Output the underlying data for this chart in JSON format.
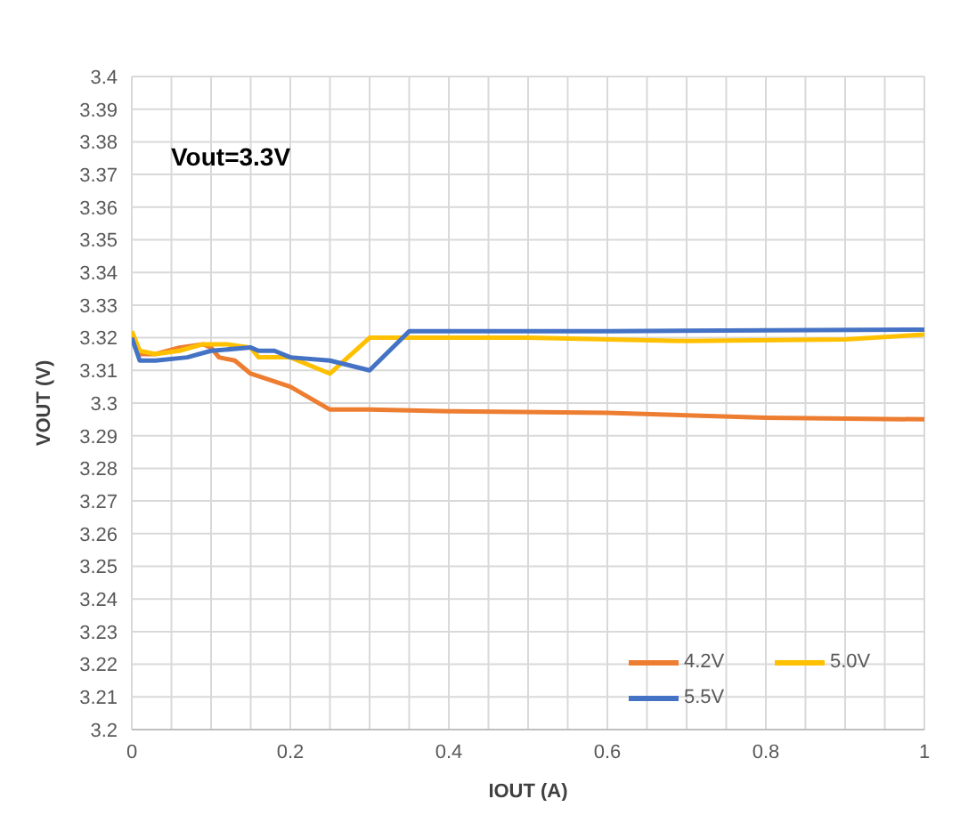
{
  "chart_data": {
    "type": "line",
    "xlabel": "IOUT (A)",
    "ylabel": "VOUT (V)",
    "annotations": [
      "Vout=3.3V"
    ],
    "xlim": [
      0,
      1
    ],
    "xticks": [
      0,
      {
        "value": 0.05,
        "label": null
      },
      {
        "value": 0.1,
        "label": null
      },
      {
        "value": 0.15,
        "label": null
      },
      0.2,
      {
        "value": 0.25,
        "label": null
      },
      {
        "value": 0.3,
        "label": null
      },
      {
        "value": 0.35,
        "label": null
      },
      0.4,
      {
        "value": 0.45,
        "label": null
      },
      {
        "value": 0.5,
        "label": null
      },
      {
        "value": 0.55,
        "label": null
      },
      0.6,
      {
        "value": 0.65,
        "label": null
      },
      {
        "value": 0.7,
        "label": null
      },
      {
        "value": 0.75,
        "label": null
      },
      0.8,
      {
        "value": 0.85,
        "label": null
      },
      {
        "value": 0.9,
        "label": null
      },
      {
        "value": 0.95,
        "label": null
      },
      1
    ],
    "ylim": [
      3.2,
      3.4
    ],
    "yticks": [
      3.2,
      3.21,
      3.22,
      3.23,
      3.24,
      3.25,
      3.26,
      3.27,
      3.28,
      3.29,
      3.3,
      3.31,
      3.32,
      3.33,
      3.34,
      3.35,
      3.36,
      3.37,
      3.38,
      3.39,
      3.4
    ],
    "grid": true,
    "legend": "bottom right",
    "marker": "none",
    "line_style": "solid",
    "series": [
      {
        "name": "4.2V",
        "color": "#ed7d31",
        "x": [
          0,
          0.01,
          0.03,
          0.06,
          0.09,
          0.1,
          0.11,
          0.13,
          0.15,
          0.2,
          0.25,
          0.3,
          0.4,
          0.6,
          0.8,
          1
        ],
        "values": [
          3.321,
          3.315,
          3.315,
          3.317,
          3.318,
          3.317,
          3.314,
          3.313,
          3.309,
          3.305,
          3.298,
          3.298,
          3.2975,
          3.297,
          3.2955,
          3.295
        ]
      },
      {
        "name": "5.0V",
        "color": "#ffc000",
        "x": [
          0,
          0.01,
          0.03,
          0.06,
          0.09,
          0.12,
          0.15,
          0.16,
          0.2,
          0.25,
          0.3,
          0.5,
          0.7,
          0.9,
          1
        ],
        "values": [
          3.322,
          3.316,
          3.315,
          3.316,
          3.318,
          3.318,
          3.317,
          3.314,
          3.314,
          3.309,
          3.32,
          3.32,
          3.319,
          3.3195,
          3.321
        ]
      },
      {
        "name": "5.5V",
        "color": "#4472c4",
        "x": [
          0,
          0.01,
          0.03,
          0.07,
          0.1,
          0.15,
          0.16,
          0.18,
          0.2,
          0.25,
          0.3,
          0.35,
          0.6,
          1
        ],
        "values": [
          3.32,
          3.313,
          3.313,
          3.314,
          3.316,
          3.317,
          3.316,
          3.316,
          3.314,
          3.313,
          3.31,
          3.322,
          3.322,
          3.3225
        ]
      }
    ]
  }
}
